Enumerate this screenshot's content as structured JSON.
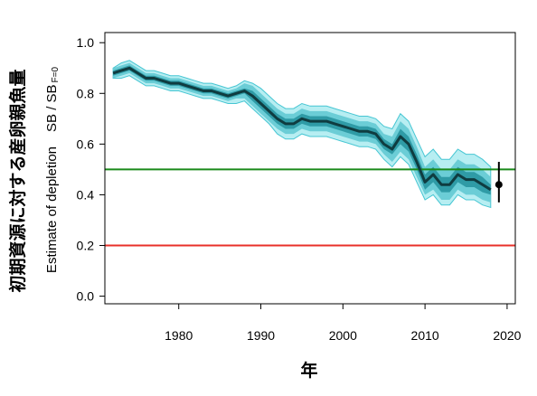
{
  "chart_data": {
    "type": "line",
    "xlabel": "年",
    "ylabel_jp": "初期資源に対する産卵親魚量",
    "ylabel_en_prefix": "Estimate of depletion",
    "ylabel_en_ratio": "SB / SB",
    "ylabel_en_sub": "F=0",
    "xlim": [
      1971,
      2021
    ],
    "ylim": [
      -0.03,
      1.04
    ],
    "x_ticks": [
      1980,
      1990,
      2000,
      2010,
      2020
    ],
    "x_tick_labels": [
      "1980",
      "1990",
      "2000",
      "2010",
      "2020"
    ],
    "y_ticks": [
      0.0,
      0.2,
      0.4,
      0.6,
      0.8,
      1.0
    ],
    "y_tick_labels": [
      "0.0",
      "0.2",
      "0.4",
      "0.6",
      "0.8",
      "1.0"
    ],
    "reference_lines": [
      {
        "y": 0.5,
        "color": "#1a8a1a"
      },
      {
        "y": 0.2,
        "color": "#e8302a"
      }
    ],
    "x": [
      1972,
      1973,
      1974,
      1975,
      1976,
      1977,
      1978,
      1979,
      1980,
      1981,
      1982,
      1983,
      1984,
      1985,
      1986,
      1987,
      1988,
      1989,
      1990,
      1991,
      1992,
      1993,
      1994,
      1995,
      1996,
      1997,
      1998,
      1999,
      2000,
      2001,
      2002,
      2003,
      2004,
      2005,
      2006,
      2007,
      2008,
      2009,
      2010,
      2011,
      2012,
      2013,
      2014,
      2015,
      2016,
      2017,
      2018
    ],
    "median": [
      0.88,
      0.89,
      0.9,
      0.88,
      0.86,
      0.86,
      0.85,
      0.84,
      0.84,
      0.83,
      0.82,
      0.81,
      0.81,
      0.8,
      0.79,
      0.8,
      0.81,
      0.79,
      0.76,
      0.73,
      0.7,
      0.68,
      0.68,
      0.7,
      0.69,
      0.69,
      0.69,
      0.68,
      0.67,
      0.66,
      0.65,
      0.65,
      0.64,
      0.6,
      0.58,
      0.63,
      0.6,
      0.53,
      0.45,
      0.48,
      0.44,
      0.44,
      0.48,
      0.46,
      0.46,
      0.44,
      0.42
    ],
    "inner_band": {
      "lower": [
        0.87,
        0.88,
        0.89,
        0.87,
        0.85,
        0.85,
        0.84,
        0.83,
        0.83,
        0.82,
        0.81,
        0.8,
        0.8,
        0.79,
        0.78,
        0.79,
        0.8,
        0.77,
        0.74,
        0.71,
        0.68,
        0.66,
        0.66,
        0.68,
        0.67,
        0.67,
        0.67,
        0.66,
        0.65,
        0.64,
        0.63,
        0.63,
        0.62,
        0.58,
        0.56,
        0.6,
        0.57,
        0.5,
        0.42,
        0.45,
        0.41,
        0.41,
        0.45,
        0.43,
        0.43,
        0.41,
        0.4
      ],
      "upper": [
        0.89,
        0.9,
        0.91,
        0.89,
        0.87,
        0.87,
        0.86,
        0.85,
        0.85,
        0.84,
        0.83,
        0.82,
        0.82,
        0.81,
        0.8,
        0.81,
        0.82,
        0.81,
        0.78,
        0.75,
        0.72,
        0.7,
        0.7,
        0.72,
        0.71,
        0.71,
        0.71,
        0.7,
        0.69,
        0.68,
        0.67,
        0.67,
        0.66,
        0.62,
        0.6,
        0.66,
        0.63,
        0.56,
        0.48,
        0.51,
        0.47,
        0.47,
        0.51,
        0.49,
        0.49,
        0.47,
        0.44
      ]
    },
    "middle_band": {
      "lower": [
        0.86,
        0.87,
        0.88,
        0.86,
        0.84,
        0.84,
        0.83,
        0.82,
        0.82,
        0.81,
        0.8,
        0.79,
        0.79,
        0.78,
        0.77,
        0.78,
        0.78,
        0.75,
        0.72,
        0.69,
        0.66,
        0.64,
        0.64,
        0.66,
        0.65,
        0.65,
        0.65,
        0.64,
        0.63,
        0.62,
        0.61,
        0.61,
        0.6,
        0.56,
        0.53,
        0.57,
        0.54,
        0.47,
        0.4,
        0.42,
        0.38,
        0.38,
        0.42,
        0.4,
        0.4,
        0.38,
        0.37
      ],
      "upper": [
        0.9,
        0.91,
        0.92,
        0.9,
        0.88,
        0.88,
        0.87,
        0.86,
        0.86,
        0.85,
        0.84,
        0.83,
        0.83,
        0.82,
        0.81,
        0.82,
        0.84,
        0.83,
        0.8,
        0.77,
        0.74,
        0.72,
        0.72,
        0.74,
        0.73,
        0.73,
        0.73,
        0.72,
        0.71,
        0.7,
        0.69,
        0.69,
        0.68,
        0.64,
        0.63,
        0.69,
        0.66,
        0.59,
        0.51,
        0.54,
        0.5,
        0.5,
        0.54,
        0.52,
        0.52,
        0.5,
        0.47
      ]
    },
    "outer_band": {
      "lower": [
        0.86,
        0.86,
        0.87,
        0.85,
        0.83,
        0.83,
        0.82,
        0.81,
        0.81,
        0.8,
        0.79,
        0.78,
        0.78,
        0.77,
        0.76,
        0.76,
        0.77,
        0.74,
        0.71,
        0.68,
        0.64,
        0.62,
        0.62,
        0.64,
        0.63,
        0.63,
        0.63,
        0.62,
        0.61,
        0.6,
        0.59,
        0.59,
        0.58,
        0.54,
        0.51,
        0.55,
        0.52,
        0.45,
        0.38,
        0.4,
        0.36,
        0.36,
        0.4,
        0.38,
        0.38,
        0.36,
        0.35
      ],
      "upper": [
        0.9,
        0.92,
        0.93,
        0.91,
        0.89,
        0.89,
        0.88,
        0.87,
        0.87,
        0.86,
        0.85,
        0.84,
        0.84,
        0.83,
        0.82,
        0.83,
        0.85,
        0.84,
        0.82,
        0.79,
        0.76,
        0.74,
        0.74,
        0.76,
        0.75,
        0.75,
        0.75,
        0.74,
        0.73,
        0.72,
        0.71,
        0.71,
        0.7,
        0.67,
        0.66,
        0.72,
        0.69,
        0.62,
        0.55,
        0.58,
        0.54,
        0.54,
        0.58,
        0.56,
        0.56,
        0.54,
        0.51
      ]
    },
    "terminal_point": {
      "x": 2019,
      "y": 0.44,
      "lower": 0.37,
      "upper": 0.53
    },
    "colors": {
      "outer_band": "#b7eef2",
      "outer_band_edge": "#47c6d3",
      "middle_band": "#6bcdd6",
      "inner_band": "#2f9ba6",
      "median": "#0f3c40",
      "axis": "#000000"
    }
  }
}
